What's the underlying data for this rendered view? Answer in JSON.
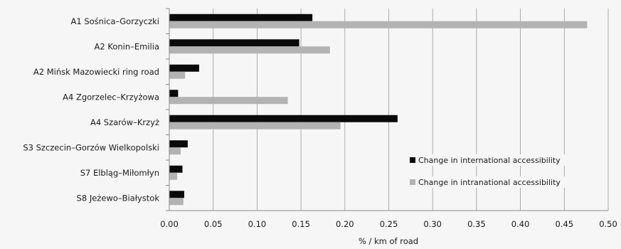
{
  "chart_data": {
    "type": "bar",
    "orientation": "horizontal",
    "categories": [
      "A1 Sośnica–Gorzyczki",
      "A2 Konin–Emilia",
      "A2 Mińsk Mazowiecki ring road",
      "A4 Zgorzelec–Krzyżowa",
      "A4 Szarów–Krzyż",
      "S3 Szczecin–Gorzów Wielkopolski",
      "S7 Elbląg–Miłomłyn",
      "S8 Jeżewo–Białystok"
    ],
    "series": [
      {
        "name": "Change in international accessibility",
        "color": "#0a0a0a",
        "values": [
          0.163,
          0.148,
          0.034,
          0.01,
          0.26,
          0.021,
          0.015,
          0.017
        ]
      },
      {
        "name": "Change in intranational accessibility",
        "color": "#b3b3b3",
        "values": [
          0.476,
          0.183,
          0.018,
          0.135,
          0.195,
          0.013,
          0.009,
          0.016
        ]
      }
    ],
    "xlabel": "% / km of road",
    "ylabel": "",
    "xlim": [
      0,
      0.5
    ],
    "xticks": [
      "0.00",
      "0.05",
      "0.10",
      "0.15",
      "0.20",
      "0.25",
      "0.30",
      "0.35",
      "0.40",
      "0.45",
      "0.50"
    ],
    "grid": true,
    "legend_position": "right"
  }
}
